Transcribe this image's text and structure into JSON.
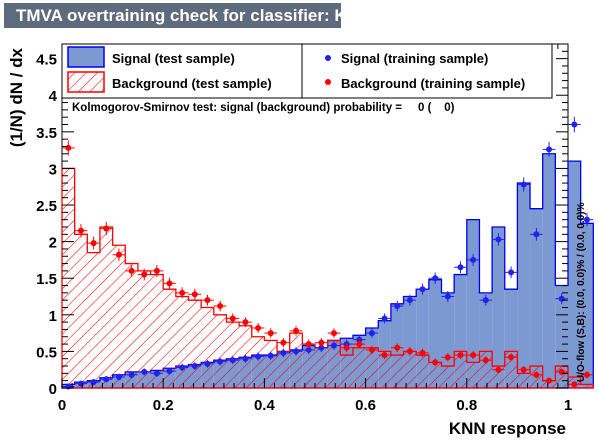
{
  "title": "TMVA overtraining check for classifier: KNN",
  "colors": {
    "signal_fill": "#7d99d1",
    "signal_line": "#0000ee",
    "background_hatch": "#ff0000",
    "signal_points": "#2222ee",
    "background_points": "#ff0000",
    "title_bg": "#5d6b7d"
  },
  "legend": {
    "signal_test": "Signal (test sample)",
    "background_test": "Background (test sample)",
    "signal_train": "Signal (training sample)",
    "background_train": "Background (training sample)"
  },
  "ks_text": "Kolmogorov-Smirnov test: signal (background) probability =     0 (    0)",
  "side_text": "U/O-flow (S,B): (0.0, 0.0)% / (0.0, 0.0)%",
  "chart_data": {
    "type": "histogram",
    "xlabel": "KNN response",
    "ylabel": "(1/N) dN / dx",
    "xlim": [
      0,
      1
    ],
    "ylim": [
      0,
      4.7
    ],
    "x_ticks": [
      "0",
      "0.2",
      "0.4",
      "0.6",
      "0.8",
      "1"
    ],
    "y_ticks": [
      "0",
      "0.5",
      "1",
      "1.5",
      "2",
      "2.5",
      "3",
      "3.5",
      "4",
      "4.5"
    ],
    "bin_width": 0.025,
    "series": [
      {
        "name": "Signal (test sample)",
        "style": "filled-histogram",
        "values": [
          0.05,
          0.08,
          0.1,
          0.14,
          0.18,
          0.22,
          0.22,
          0.24,
          0.27,
          0.3,
          0.32,
          0.35,
          0.38,
          0.4,
          0.42,
          0.45,
          0.45,
          0.48,
          0.52,
          0.58,
          0.55,
          0.65,
          0.68,
          0.72,
          0.82,
          0.92,
          1.15,
          1.25,
          1.35,
          1.48,
          1.3,
          1.55,
          2.3,
          1.3,
          2.2,
          1.35,
          2.8,
          2.45,
          3.2,
          1.4,
          3.1,
          2.25
        ]
      },
      {
        "name": "Background (test sample)",
        "style": "hatched-histogram",
        "values": [
          3.0,
          2.1,
          1.85,
          2.2,
          1.95,
          1.7,
          1.6,
          1.55,
          1.35,
          1.25,
          1.2,
          1.1,
          1.0,
          0.9,
          0.85,
          0.7,
          0.65,
          0.5,
          0.75,
          0.6,
          0.55,
          0.65,
          0.45,
          0.55,
          0.55,
          0.5,
          0.45,
          0.5,
          0.45,
          0.35,
          0.3,
          0.5,
          0.35,
          0.5,
          0.3,
          0.5,
          0.2,
          0.3,
          0.1,
          0.3,
          0.15,
          0.05
        ]
      },
      {
        "name": "Signal (training sample)",
        "style": "points",
        "values": [
          0.02,
          0.06,
          0.08,
          0.12,
          0.15,
          0.18,
          0.22,
          0.2,
          0.23,
          0.28,
          0.3,
          0.33,
          0.36,
          0.38,
          0.4,
          0.43,
          0.44,
          0.48,
          0.5,
          0.52,
          0.55,
          0.58,
          0.6,
          0.66,
          0.75,
          0.95,
          1.12,
          1.2,
          1.35,
          1.5,
          1.25,
          1.65,
          1.75,
          1.2,
          2.03,
          1.58,
          2.78,
          2.1,
          3.26,
          1.22,
          3.6,
          2.3
        ]
      },
      {
        "name": "Background (training sample)",
        "style": "points",
        "values": [
          3.28,
          2.15,
          1.98,
          2.18,
          1.82,
          1.6,
          1.55,
          1.6,
          1.43,
          1.3,
          1.28,
          1.2,
          1.12,
          0.95,
          0.9,
          0.82,
          0.75,
          0.62,
          0.78,
          0.6,
          0.62,
          0.75,
          0.55,
          0.6,
          0.52,
          0.45,
          0.55,
          0.5,
          0.48,
          0.35,
          0.42,
          0.45,
          0.45,
          0.38,
          0.25,
          0.42,
          0.25,
          0.18,
          0.1,
          0.22,
          0.05,
          0.18
        ]
      }
    ]
  }
}
